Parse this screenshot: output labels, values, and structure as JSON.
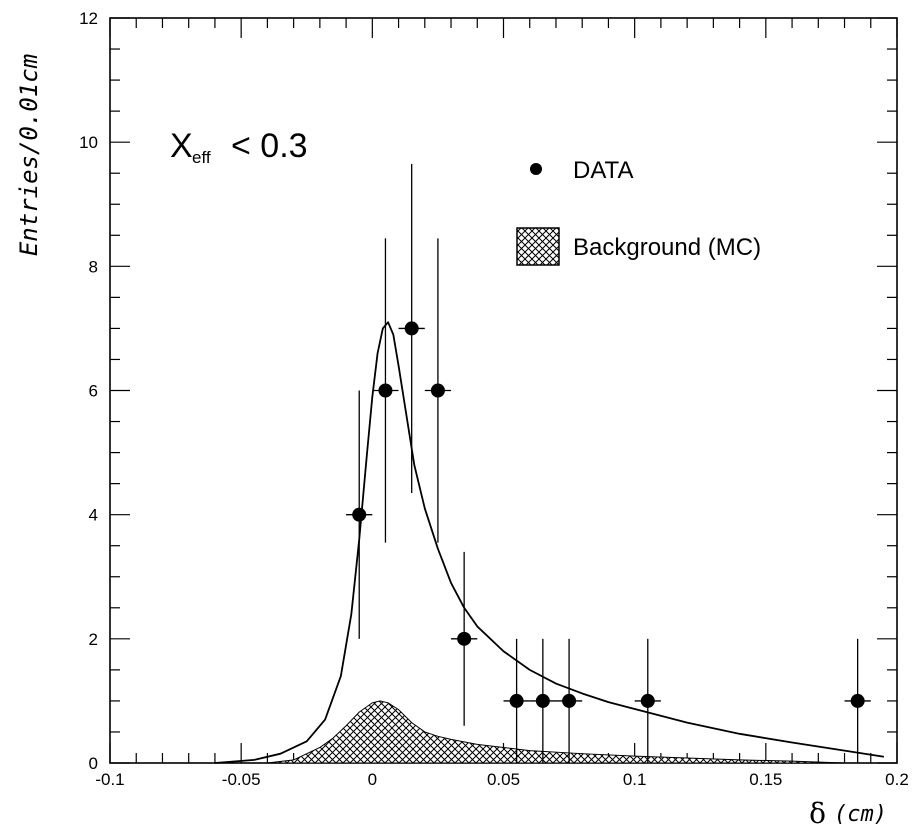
{
  "chart_data": {
    "type": "scatter",
    "title": "",
    "xlabel_symbol": "δ",
    "xlabel_unit": "(cm)",
    "ylabel": "Entries/0.01cm",
    "xlim": [
      -0.1,
      0.2
    ],
    "ylim": [
      0,
      12
    ],
    "x_ticks": [
      "-0.1",
      "-0.05",
      "0",
      "0.05",
      "0.1",
      "0.15",
      "0.2"
    ],
    "y_ticks": [
      "0",
      "2",
      "4",
      "6",
      "8",
      "10",
      "12"
    ],
    "annotation": {
      "main": "X",
      "sub": "eff",
      "rest": "< 0.3"
    },
    "legend": {
      "position": "top-right",
      "entries": [
        {
          "label": "DATA",
          "marker": "filled-circle"
        },
        {
          "label": "Background (MC)",
          "marker": "hatched-box"
        }
      ]
    },
    "series": [
      {
        "name": "DATA",
        "kind": "points-with-errors",
        "x": [
          -0.005,
          0.005,
          0.015,
          0.025,
          0.035,
          0.055,
          0.065,
          0.075,
          0.105,
          0.185
        ],
        "y": [
          4,
          6,
          7,
          6,
          2,
          1,
          1,
          1,
          1,
          1
        ],
        "y_err_low": [
          2.0,
          2.45,
          2.65,
          2.45,
          1.4,
          1.0,
          1.0,
          1.0,
          1.0,
          1.0
        ],
        "y_err_high": [
          2.0,
          2.45,
          2.65,
          2.45,
          1.4,
          1.0,
          1.0,
          1.0,
          1.0,
          1.0
        ],
        "x_err": 0.005
      },
      {
        "name": "Fit",
        "kind": "line",
        "x": [
          -0.06,
          -0.045,
          -0.035,
          -0.025,
          -0.018,
          -0.012,
          -0.008,
          -0.005,
          -0.002,
          0.0,
          0.002,
          0.004,
          0.006,
          0.008,
          0.01,
          0.013,
          0.016,
          0.02,
          0.025,
          0.03,
          0.035,
          0.04,
          0.05,
          0.06,
          0.07,
          0.08,
          0.09,
          0.1,
          0.12,
          0.14,
          0.16,
          0.18,
          0.195
        ],
        "y": [
          0.0,
          0.05,
          0.15,
          0.35,
          0.7,
          1.4,
          2.4,
          3.6,
          5.0,
          5.9,
          6.6,
          7.0,
          7.1,
          6.9,
          6.4,
          5.6,
          4.8,
          4.1,
          3.45,
          2.9,
          2.5,
          2.2,
          1.8,
          1.5,
          1.28,
          1.12,
          0.98,
          0.87,
          0.65,
          0.47,
          0.33,
          0.2,
          0.1
        ]
      },
      {
        "name": "Background (MC)",
        "kind": "hatched-area",
        "x": [
          -0.04,
          -0.03,
          -0.02,
          -0.015,
          -0.01,
          -0.005,
          0.0,
          0.003,
          0.006,
          0.01,
          0.015,
          0.02,
          0.025,
          0.03,
          0.04,
          0.05,
          0.06,
          0.08,
          0.1,
          0.12,
          0.14,
          0.16,
          0.18
        ],
        "y": [
          0.0,
          0.05,
          0.25,
          0.4,
          0.6,
          0.82,
          0.97,
          1.0,
          0.97,
          0.86,
          0.65,
          0.5,
          0.43,
          0.38,
          0.3,
          0.25,
          0.2,
          0.15,
          0.11,
          0.08,
          0.05,
          0.03,
          0.0
        ]
      }
    ]
  }
}
